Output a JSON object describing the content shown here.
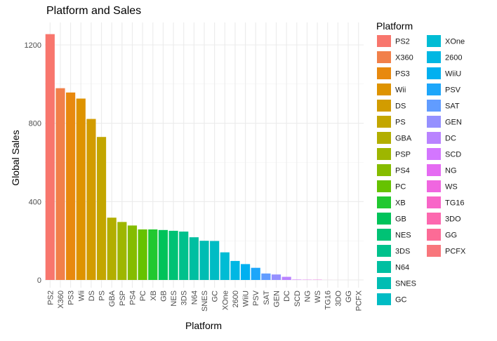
{
  "chart_data": {
    "type": "bar",
    "title": "Platform and Sales",
    "xlabel": "Platform",
    "ylabel": "Global Sales",
    "ylim": [
      0,
      1300
    ],
    "yticks": [
      "0",
      "400",
      "800",
      "1200"
    ],
    "grid": true,
    "legend_title": "Platform",
    "legend_position": "right",
    "categories": [
      "PS2",
      "X360",
      "PS3",
      "Wii",
      "DS",
      "PS",
      "GBA",
      "PSP",
      "PS4",
      "PC",
      "XB",
      "GB",
      "NES",
      "3DS",
      "N64",
      "SNES",
      "GC",
      "XOne",
      "2600",
      "WiiU",
      "PSV",
      "SAT",
      "GEN",
      "DC",
      "SCD",
      "NG",
      "WS",
      "TG16",
      "3DO",
      "GG",
      "PCFX"
    ],
    "values": [
      1255,
      979,
      957,
      926,
      822,
      730,
      318,
      296,
      278,
      258,
      258,
      255,
      251,
      247,
      218,
      200,
      199,
      141,
      97,
      81,
      62,
      33,
      28,
      16,
      2,
      1.4,
      1.4,
      0.2,
      0.1,
      0.04,
      0.03
    ],
    "colors": [
      "#F8766D",
      "#F1804A",
      "#E8890E",
      "#DE9300",
      "#D29C00",
      "#C3A600",
      "#B2AE00",
      "#9EB600",
      "#85BC00",
      "#66C200",
      "#21C830",
      "#00C35A",
      "#00C275",
      "#00C18C",
      "#00BFA1",
      "#00BDB3",
      "#00BCC4",
      "#00BCD4",
      "#00B7E3",
      "#00B0F0",
      "#1DA6FA",
      "#619CFF",
      "#9590FF",
      "#B983FF",
      "#D376FF",
      "#E56BF2",
      "#F066E0",
      "#F865C8",
      "#FC68AF",
      "#FC6B96",
      "#F8767C"
    ]
  }
}
